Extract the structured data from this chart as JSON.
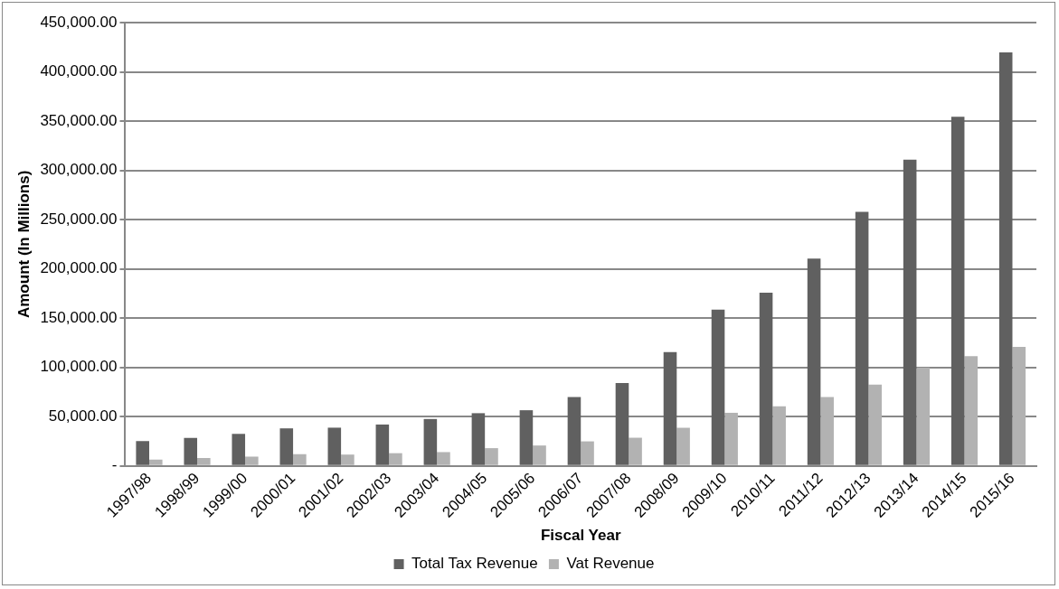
{
  "chart_data": {
    "type": "bar",
    "xlabel": "Fiscal Year",
    "ylabel": "Amount (In Millions)",
    "categories": [
      "1997/98",
      "1998/99",
      "1999/00",
      "2000/01",
      "2001/02",
      "2002/03",
      "2003/04",
      "2004/05",
      "2005/06",
      "2006/07",
      "2007/08",
      "2008/09",
      "2009/10",
      "2010/11",
      "2011/12",
      "2012/13",
      "2013/14",
      "2014/15",
      "2015/16"
    ],
    "series": [
      {
        "name": "Total Tax Revenue",
        "color": "#606060",
        "values": [
          25200,
          28300,
          32500,
          38100,
          38800,
          42000,
          47600,
          53500,
          56500,
          70000,
          84000,
          115600,
          158700,
          175800,
          210400,
          258000,
          310800,
          354300,
          419700
        ]
      },
      {
        "name": "Vat Revenue",
        "color": "#b2b2b2",
        "values": [
          6300,
          8000,
          9400,
          11900,
          11500,
          12900,
          14000,
          18000,
          20700,
          24900,
          28600,
          38700,
          53900,
          60600,
          69900,
          82500,
          99600,
          111500,
          120800
        ]
      }
    ],
    "ylim": [
      0,
      450000
    ],
    "yticks": [
      {
        "value": 0,
        "label": "-"
      },
      {
        "value": 50000,
        "label": "50,000.00"
      },
      {
        "value": 100000,
        "label": "100,000.00"
      },
      {
        "value": 150000,
        "label": "150,000.00"
      },
      {
        "value": 200000,
        "label": "200,000.00"
      },
      {
        "value": 250000,
        "label": "250,000.00"
      },
      {
        "value": 300000,
        "label": "300,000.00"
      },
      {
        "value": 350000,
        "label": "350,000.00"
      },
      {
        "value": 400000,
        "label": "400,000.00"
      },
      {
        "value": 450000,
        "label": "450,000.00"
      }
    ],
    "grid": "y",
    "legend": "bottom"
  }
}
